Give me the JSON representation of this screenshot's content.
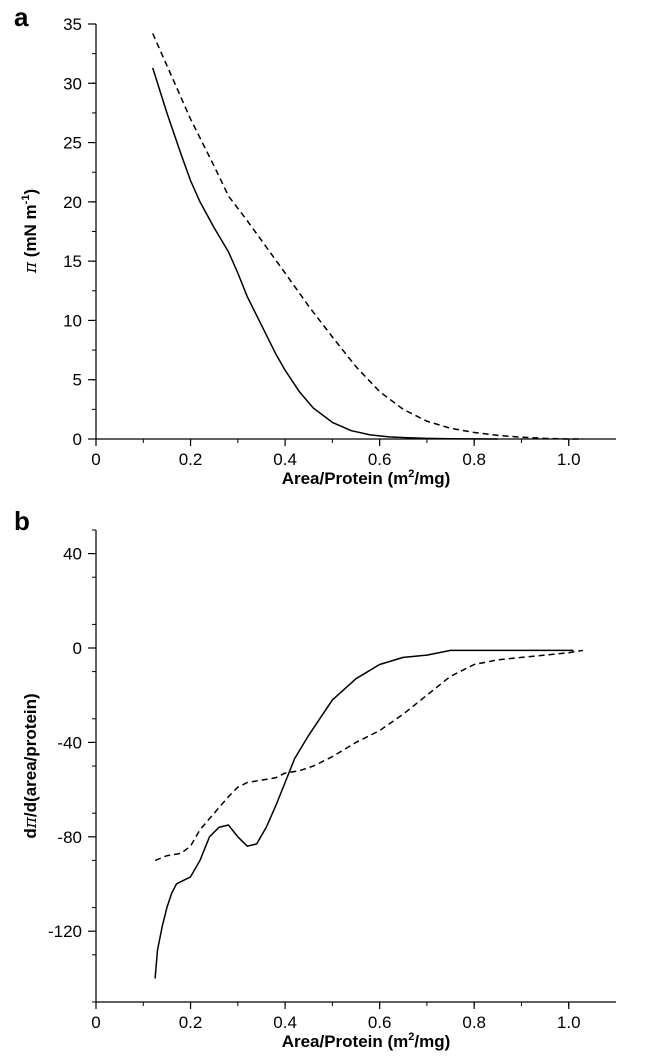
{
  "chart_data": [
    {
      "panel": "a",
      "type": "line",
      "title": "",
      "xlabel": "Area/Protein (m²/mg)",
      "ylabel": "π (mN m⁻¹)",
      "xlim": [
        0,
        1.1
      ],
      "ylim": [
        0,
        35
      ],
      "xticks": [
        "0",
        "0.2",
        "0.4",
        "0.6",
        "0.8",
        "1.0"
      ],
      "yticks": [
        "0",
        "5",
        "10",
        "15",
        "20",
        "25",
        "30",
        "35"
      ],
      "grid": false,
      "series": [
        {
          "style": "solid",
          "x": [
            0.12,
            0.15,
            0.18,
            0.2,
            0.22,
            0.25,
            0.28,
            0.3,
            0.32,
            0.35,
            0.38,
            0.4,
            0.43,
            0.46,
            0.5,
            0.54,
            0.58,
            0.62,
            0.66,
            0.7,
            0.75,
            0.8,
            0.85
          ],
          "y": [
            31.3,
            27.5,
            24.0,
            21.8,
            20.0,
            17.8,
            15.8,
            14.0,
            12.0,
            9.6,
            7.2,
            5.8,
            4.0,
            2.6,
            1.4,
            0.7,
            0.35,
            0.18,
            0.1,
            0.05,
            0.02,
            0.01,
            0.0
          ]
        },
        {
          "style": "dashed",
          "x": [
            0.12,
            0.15,
            0.2,
            0.25,
            0.28,
            0.32,
            0.36,
            0.4,
            0.45,
            0.5,
            0.55,
            0.6,
            0.65,
            0.7,
            0.75,
            0.8,
            0.85,
            0.9,
            0.95,
            1.0,
            1.03
          ],
          "y": [
            34.2,
            31.5,
            27.0,
            23.0,
            20.5,
            18.4,
            16.2,
            14.0,
            11.2,
            8.6,
            6.1,
            4.0,
            2.5,
            1.5,
            0.9,
            0.55,
            0.3,
            0.15,
            0.05,
            0.0,
            0.0
          ]
        }
      ]
    },
    {
      "panel": "b",
      "type": "line",
      "title": "",
      "xlabel": "Area/Protein (m²/mg)",
      "ylabel": "dπ/d(area/protein)",
      "xlim": [
        0,
        1.1
      ],
      "ylim": [
        -150,
        50
      ],
      "xticks": [
        "0",
        "0.2",
        "0.4",
        "0.6",
        "0.8",
        "1.0"
      ],
      "yticks": [
        "-120",
        "-80",
        "-40",
        "0",
        "40"
      ],
      "grid": false,
      "series": [
        {
          "style": "solid",
          "x": [
            0.125,
            0.13,
            0.14,
            0.15,
            0.16,
            0.17,
            0.18,
            0.2,
            0.22,
            0.24,
            0.26,
            0.28,
            0.3,
            0.32,
            0.34,
            0.36,
            0.38,
            0.4,
            0.42,
            0.45,
            0.48,
            0.5,
            0.55,
            0.6,
            0.65,
            0.7,
            0.75,
            0.8,
            0.9,
            1.01
          ],
          "y": [
            -140,
            -128,
            -118,
            -110,
            -104,
            -100,
            -99,
            -97,
            -90,
            -80,
            -76,
            -75,
            -80,
            -84,
            -83,
            -76,
            -67,
            -57,
            -47,
            -37,
            -28,
            -22,
            -13,
            -7,
            -4,
            -3,
            -1,
            -1,
            -1,
            -1
          ]
        },
        {
          "style": "dashed",
          "x": [
            0.125,
            0.15,
            0.18,
            0.2,
            0.22,
            0.25,
            0.28,
            0.3,
            0.32,
            0.35,
            0.38,
            0.4,
            0.43,
            0.46,
            0.5,
            0.55,
            0.6,
            0.65,
            0.7,
            0.75,
            0.8,
            0.85,
            0.9,
            0.95,
            1.0,
            1.03
          ],
          "y": [
            -90,
            -88,
            -87,
            -84,
            -77,
            -70,
            -63,
            -59,
            -57,
            -56,
            -55,
            -53,
            -52,
            -50,
            -46,
            -40,
            -35,
            -28,
            -20,
            -12,
            -7,
            -5,
            -4,
            -3,
            -2,
            -1
          ]
        }
      ]
    }
  ]
}
